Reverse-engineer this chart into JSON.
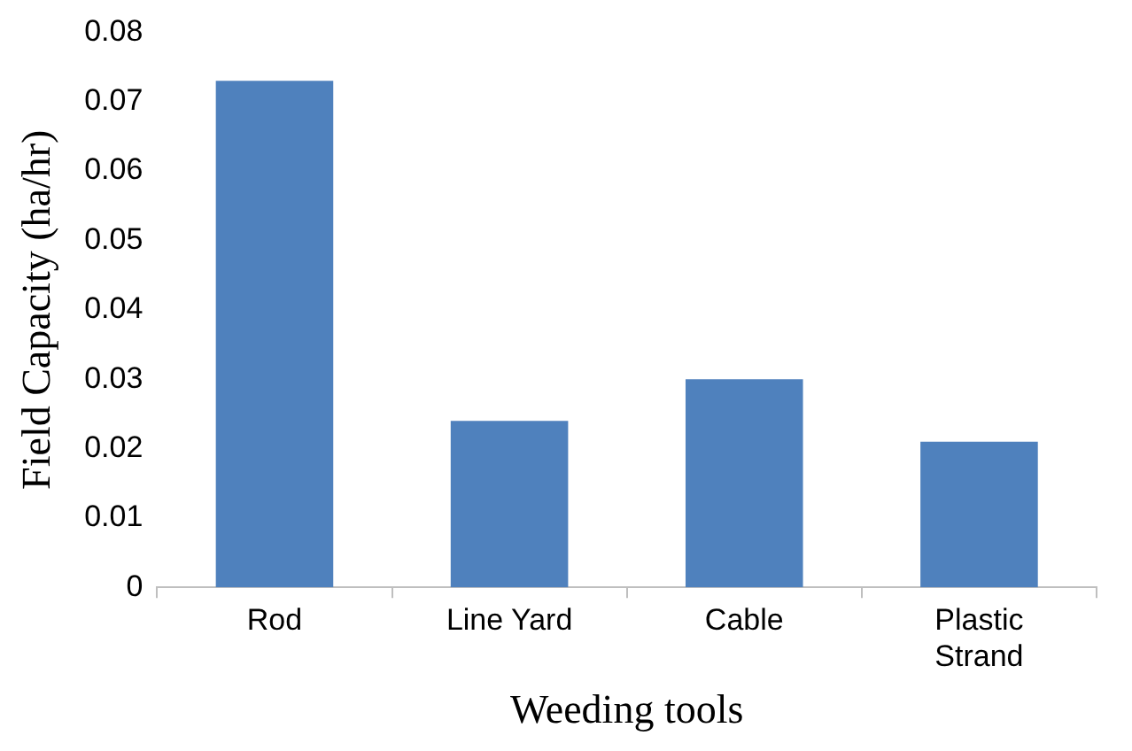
{
  "chart_data": {
    "type": "bar",
    "categories": [
      "Rod",
      "Line Yard",
      "Cable",
      "Plastic Strand"
    ],
    "values": [
      0.073,
      0.024,
      0.03,
      0.021
    ],
    "color": "#4f81bd",
    "xlabel": "Weeding tools",
    "ylabel": "Field Capacity (ha/hr)",
    "ylim": [
      0,
      0.08
    ],
    "yticks": [
      0,
      0.01,
      0.02,
      0.03,
      0.04,
      0.05,
      0.06,
      0.07,
      0.08
    ],
    "grid": false,
    "legend": false
  }
}
